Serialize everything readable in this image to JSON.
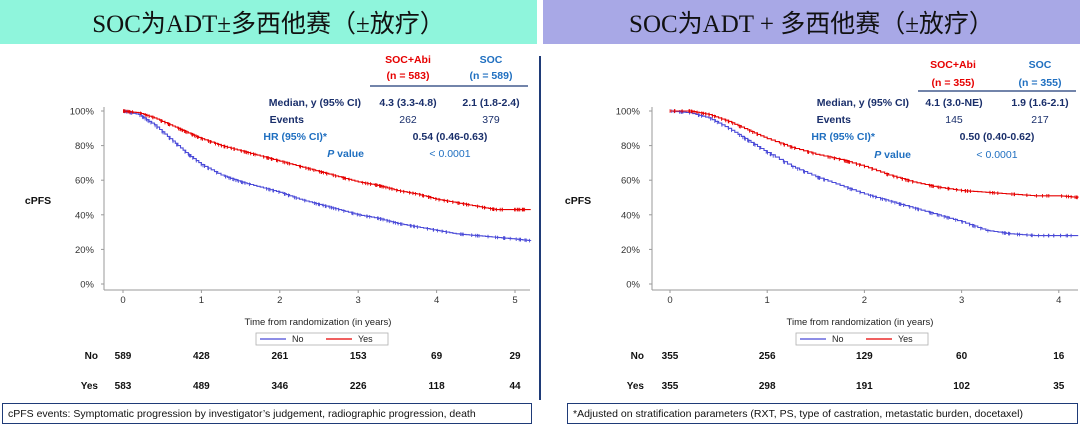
{
  "banners": {
    "left": "SOC为ADT±多西他赛（±放疗）",
    "right": "SOC为ADT + 多西他赛（±放疗）"
  },
  "colors": {
    "abi": "#e60000",
    "soc": "#4a4ad8",
    "navy": "#1f3b78"
  },
  "panels": [
    {
      "stats": {
        "abi_name": "SOC+Abi",
        "abi_n": "(n = 583)",
        "soc_name": "SOC",
        "soc_n": "(n = 589)",
        "median_label": "Median, y (95% CI)",
        "median_abi": "4.3 (3.3-4.8)",
        "median_soc": "2.1 (1.8-2.4)",
        "events_label": "Events",
        "events_abi": "262",
        "events_soc": "379",
        "hr_label": "HR (95% CI)*",
        "hr_value": "0.54 (0.46-0.63)",
        "p_label_italic": "P",
        "p_label_rest": " value",
        "p_value": "< 0.0001"
      },
      "risk_table": {
        "no_label": "No",
        "yes_label": "Yes",
        "no": [
          "589",
          "428",
          "261",
          "153",
          "69",
          "29"
        ],
        "yes": [
          "583",
          "489",
          "346",
          "226",
          "118",
          "44"
        ]
      }
    },
    {
      "stats": {
        "abi_name": "SOC+Abi",
        "abi_n": "(n = 355)",
        "soc_name": "SOC",
        "soc_n": "(n = 355)",
        "median_label": "Median, y (95% CI)",
        "median_abi": "4.1 (3.0-NE)",
        "median_soc": "1.9 (1.6-2.1)",
        "events_label": "Events",
        "events_abi": "145",
        "events_soc": "217",
        "hr_label": "HR (95% CI)*",
        "hr_value": "0.50 (0.40-0.62)",
        "p_label_italic": "P",
        "p_label_rest": " value",
        "p_value": "< 0.0001"
      },
      "risk_table": {
        "no_label": "No",
        "yes_label": "Yes",
        "no": [
          "355",
          "256",
          "129",
          "60",
          "16"
        ],
        "yes": [
          "355",
          "298",
          "191",
          "102",
          "35"
        ]
      }
    }
  ],
  "footnotes": {
    "left": "cPFS events: Symptomatic progression by investigator’s judgement, radiographic progression, death",
    "right": "*Adjusted on stratification parameters (RXT, PS, type of castration, metastatic burden, docetaxel)"
  },
  "chart_data": [
    {
      "type": "line",
      "title": "",
      "xlabel": "Time from randomization (in years)",
      "ylabel": "cPFS",
      "xlim": [
        0,
        5.2
      ],
      "ylim": [
        0,
        100
      ],
      "x_ticks": [
        "0",
        "1",
        "2",
        "3",
        "4",
        "5"
      ],
      "y_ticks": [
        "0%",
        "20%",
        "40%",
        "60%",
        "80%",
        "100%"
      ],
      "legend": [
        "No",
        "Yes"
      ],
      "series": [
        {
          "name": "No",
          "x": [
            0,
            0.2,
            0.4,
            0.6,
            0.8,
            1.0,
            1.25,
            1.5,
            1.75,
            2.0,
            2.25,
            2.5,
            2.75,
            3.0,
            3.25,
            3.5,
            3.75,
            4.0,
            4.25,
            4.5,
            4.75,
            5.0,
            5.2
          ],
          "y": [
            100,
            98,
            92,
            84,
            76,
            69,
            63,
            59,
            56,
            53,
            49,
            46,
            43,
            40,
            38,
            35,
            33,
            31,
            29,
            28,
            27,
            26,
            25
          ]
        },
        {
          "name": "Yes",
          "x": [
            0,
            0.2,
            0.4,
            0.6,
            0.8,
            1.0,
            1.25,
            1.5,
            1.75,
            2.0,
            2.25,
            2.5,
            2.75,
            3.0,
            3.25,
            3.5,
            3.75,
            4.0,
            4.25,
            4.5,
            4.75,
            5.0,
            5.2
          ],
          "y": [
            100,
            99,
            96,
            92,
            88,
            84,
            80,
            77,
            74,
            71,
            68,
            65,
            62,
            59,
            57,
            54,
            52,
            49,
            47,
            45,
            43,
            43,
            43
          ]
        }
      ]
    },
    {
      "type": "line",
      "title": "",
      "xlabel": "Time from randomization (in years)",
      "ylabel": "cPFS",
      "xlim": [
        0,
        4.2
      ],
      "ylim": [
        0,
        100
      ],
      "x_ticks": [
        "0",
        "1",
        "2",
        "3",
        "4"
      ],
      "y_ticks": [
        "0%",
        "20%",
        "40%",
        "60%",
        "80%",
        "100%"
      ],
      "legend": [
        "No",
        "Yes"
      ],
      "series": [
        {
          "name": "No",
          "x": [
            0,
            0.2,
            0.4,
            0.6,
            0.8,
            1.0,
            1.25,
            1.5,
            1.75,
            2.0,
            2.25,
            2.5,
            2.75,
            3.0,
            3.25,
            3.5,
            3.75,
            4.0,
            4.2
          ],
          "y": [
            100,
            99,
            96,
            90,
            83,
            76,
            68,
            62,
            57,
            52,
            48,
            44,
            40,
            36,
            31,
            29,
            28,
            28,
            28
          ]
        },
        {
          "name": "Yes",
          "x": [
            0,
            0.2,
            0.4,
            0.6,
            0.8,
            1.0,
            1.25,
            1.5,
            1.75,
            2.0,
            2.25,
            2.5,
            2.75,
            3.0,
            3.25,
            3.5,
            3.75,
            4.0,
            4.2
          ],
          "y": [
            100,
            100,
            98,
            94,
            89,
            84,
            79,
            75,
            72,
            68,
            63,
            59,
            56,
            54,
            53,
            52,
            51,
            51,
            50
          ]
        }
      ]
    }
  ]
}
